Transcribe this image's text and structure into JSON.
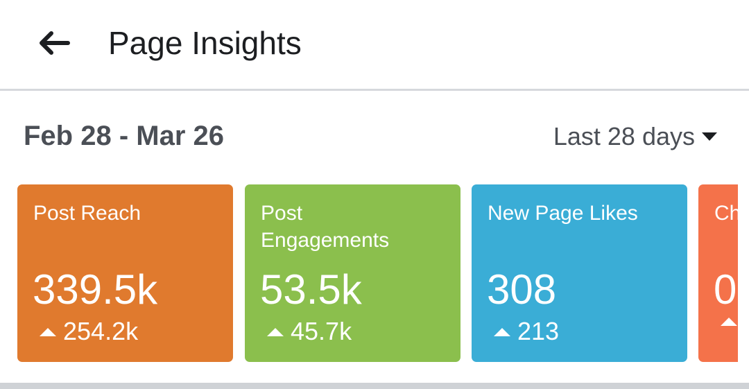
{
  "header": {
    "title": "Page Insights"
  },
  "summary": {
    "date_range": "Feb 28 - Mar 26",
    "period_selected": "Last 28 days"
  },
  "cards": [
    {
      "label": "Post Reach",
      "value": "339.5k",
      "delta": "254.2k",
      "color": "#e07a2e"
    },
    {
      "label": "Post\nEngagements",
      "value": "53.5k",
      "delta": "45.7k",
      "color": "#8bbf4d"
    },
    {
      "label": "New Page Likes",
      "value": "308",
      "delta": "213",
      "color": "#3aadd6"
    },
    {
      "label": "Ch",
      "value": "0",
      "delta": "",
      "color": "#f4724a"
    }
  ],
  "icons": {
    "back": "arrow-left-icon",
    "period_dropdown": "caret-down-icon",
    "trend": "triangle-up-icon"
  }
}
